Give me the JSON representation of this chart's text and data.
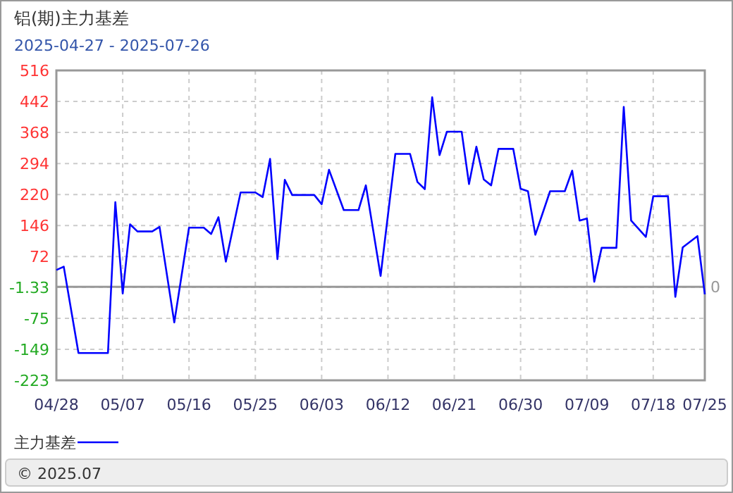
{
  "chart_data": {
    "type": "line",
    "title": "铝(期)主力基差",
    "subtitle": "2025-04-27 - 2025-07-26",
    "series": [
      {
        "name": "主力基差",
        "color": "#0000ff",
        "x": [
          "2025-04-28",
          "2025-04-29",
          "2025-04-30",
          "2025-05-01",
          "2025-05-05",
          "2025-05-06",
          "2025-05-07",
          "2025-05-08",
          "2025-05-09",
          "2025-05-11",
          "2025-05-12",
          "2025-05-14",
          "2025-05-16",
          "2025-05-18",
          "2025-05-19",
          "2025-05-20",
          "2025-05-21",
          "2025-05-23",
          "2025-05-25",
          "2025-05-26",
          "2025-05-27",
          "2025-05-28",
          "2025-05-29",
          "2025-05-30",
          "2025-06-02",
          "2025-06-03",
          "2025-06-04",
          "2025-06-06",
          "2025-06-08",
          "2025-06-09",
          "2025-06-11",
          "2025-06-13",
          "2025-06-15",
          "2025-06-16",
          "2025-06-17",
          "2025-06-18",
          "2025-06-19",
          "2025-06-20",
          "2025-06-22",
          "2025-06-23",
          "2025-06-24",
          "2025-06-25",
          "2025-06-26",
          "2025-06-27",
          "2025-06-29",
          "2025-06-30",
          "2025-07-01",
          "2025-07-02",
          "2025-07-04",
          "2025-07-06",
          "2025-07-07",
          "2025-07-08",
          "2025-07-09",
          "2025-07-10",
          "2025-07-11",
          "2025-07-13",
          "2025-07-14",
          "2025-07-15",
          "2025-07-17",
          "2025-07-18",
          "2025-07-20",
          "2025-07-21",
          "2025-07-22",
          "2025-07-24",
          "2025-07-25"
        ],
        "values": [
          40,
          48,
          -55,
          -158,
          -158,
          202,
          -16,
          149,
          132,
          132,
          143,
          -85,
          141,
          141,
          126,
          166,
          60,
          225,
          225,
          214,
          305,
          66,
          255,
          219,
          219,
          197,
          279,
          183,
          183,
          242,
          26,
          317,
          317,
          250,
          233,
          452,
          314,
          370,
          370,
          245,
          334,
          256,
          242,
          329,
          329,
          234,
          228,
          124,
          228,
          228,
          277,
          158,
          163,
          12,
          93,
          93,
          429,
          158,
          119,
          216,
          216,
          -24,
          94,
          121,
          -18
        ]
      }
    ],
    "xlim": [
      "2025-04-28",
      "2025-07-25"
    ],
    "xticks": [
      {
        "value": "2025-04-28",
        "label": "04/28"
      },
      {
        "value": "2025-05-07",
        "label": "05/07"
      },
      {
        "value": "2025-05-16",
        "label": "05/16"
      },
      {
        "value": "2025-05-25",
        "label": "05/25"
      },
      {
        "value": "2025-06-03",
        "label": "06/03"
      },
      {
        "value": "2025-06-12",
        "label": "06/12"
      },
      {
        "value": "2025-06-21",
        "label": "06/21"
      },
      {
        "value": "2025-06-30",
        "label": "06/30"
      },
      {
        "value": "2025-07-09",
        "label": "07/09"
      },
      {
        "value": "2025-07-18",
        "label": "07/18"
      },
      {
        "value": "2025-07-25",
        "label": "07/25"
      }
    ],
    "ylim": [
      -223,
      516
    ],
    "yticks": [
      516,
      442,
      368,
      294,
      220,
      146,
      72,
      -1.33,
      -75,
      -149,
      -223
    ],
    "ref_lines": [
      {
        "axis": "y",
        "value": 0,
        "label": "0",
        "color": "#999999"
      }
    ],
    "grid": true,
    "legend": "bottom left",
    "marker": "none",
    "line_style": "solid",
    "annotations": [
      "© 2025.07"
    ]
  }
}
